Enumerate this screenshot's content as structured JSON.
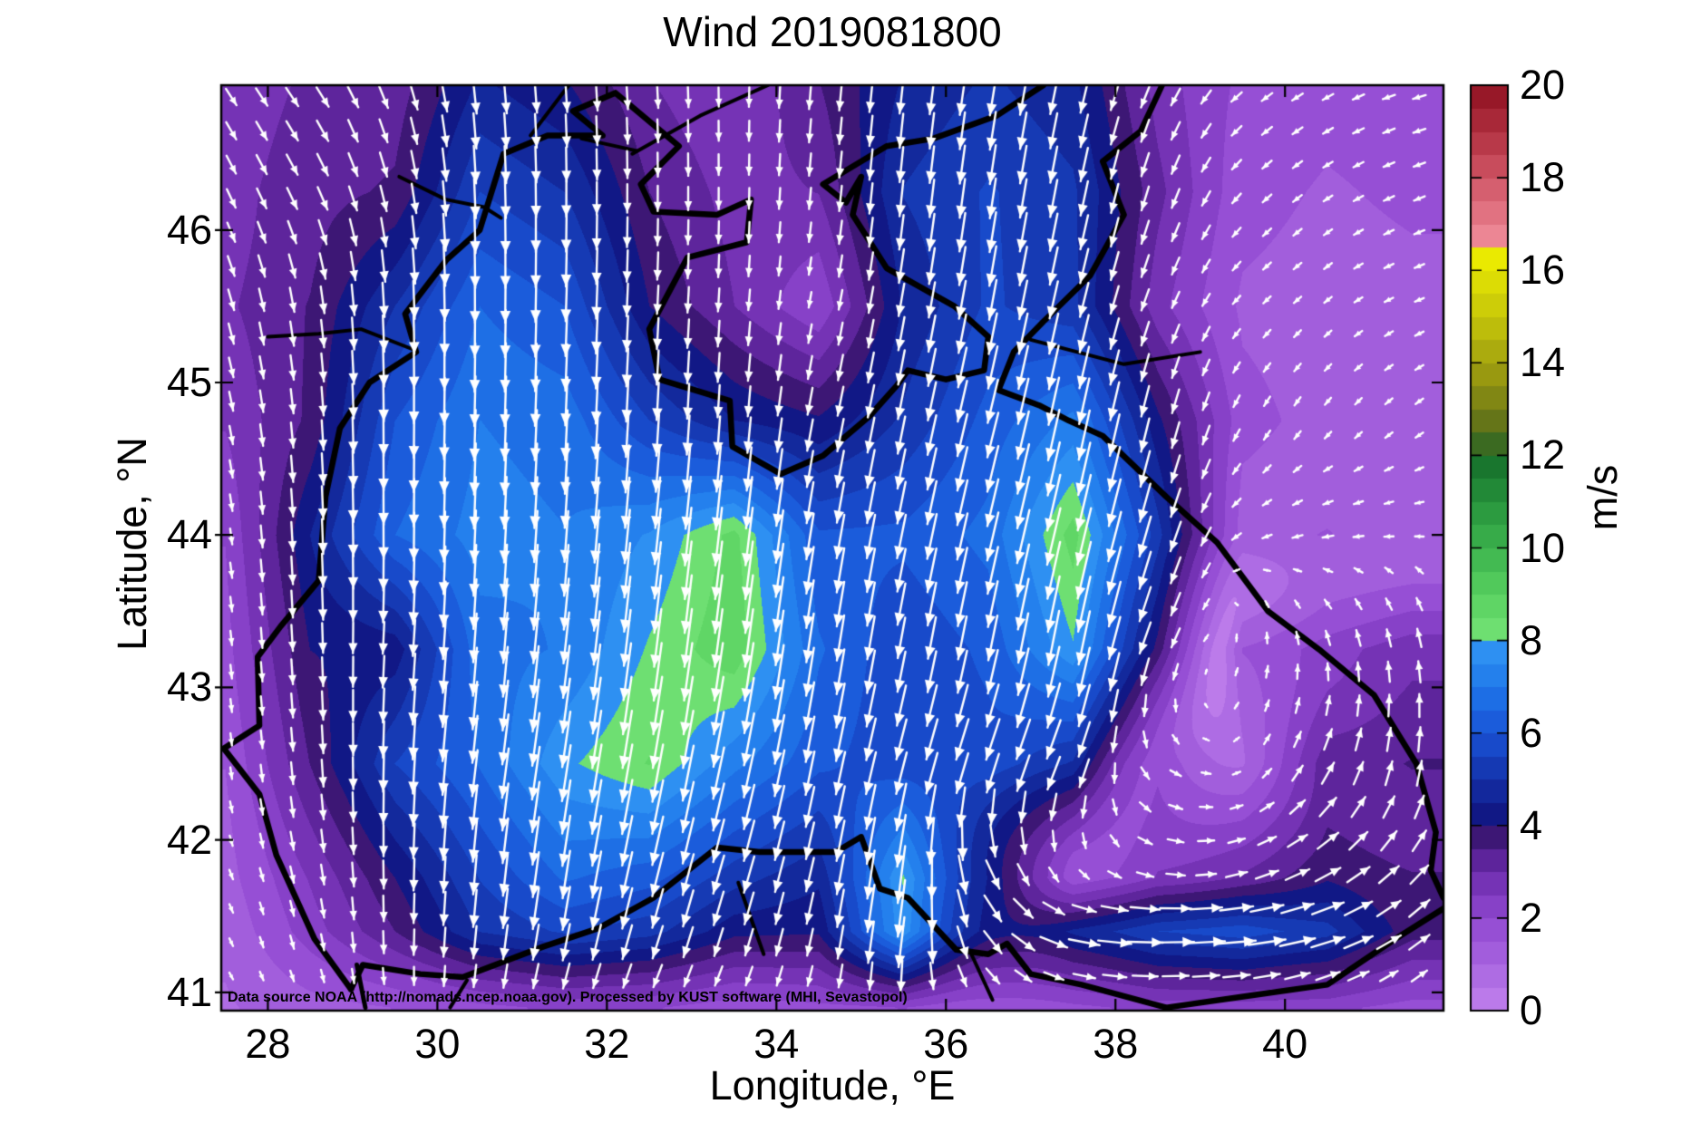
{
  "title": "Wind 2019081800",
  "footer": "Data source NOAA (http://nomads.ncep.noaa.gov). Processed by KUST software (MHI, Sevastopol)",
  "axes": {
    "xlabel": "Longitude, °E",
    "ylabel": "Latitude, °N",
    "x_ticks": [
      28,
      30,
      32,
      34,
      36,
      38,
      40
    ],
    "y_ticks": [
      41,
      42,
      43,
      44,
      45,
      46
    ],
    "lon_range": [
      27.45,
      41.87
    ],
    "lat_range": [
      40.88,
      46.95
    ]
  },
  "colorbar": {
    "label": "m/s",
    "ticks": [
      0,
      2,
      4,
      6,
      8,
      10,
      12,
      14,
      16,
      18,
      20
    ],
    "min": 0,
    "max": 20,
    "stops": [
      [
        0,
        "#c282ee"
      ],
      [
        1,
        "#a865e0"
      ],
      [
        2,
        "#9048d1"
      ],
      [
        3,
        "#6c2cac"
      ],
      [
        3.6,
        "#4a1b85"
      ],
      [
        3.95,
        "#2c1260"
      ],
      [
        4,
        "#10107a"
      ],
      [
        5,
        "#1431a8"
      ],
      [
        6,
        "#1a53d6"
      ],
      [
        7,
        "#1f78ea"
      ],
      [
        7.75,
        "#2e90f2"
      ],
      [
        7.8,
        "#7ce87c"
      ],
      [
        9,
        "#58d160"
      ],
      [
        10,
        "#3db34e"
      ],
      [
        11,
        "#27933c"
      ],
      [
        12,
        "#156d2a"
      ],
      [
        12.4,
        "#52691c"
      ],
      [
        13.5,
        "#909012"
      ],
      [
        15,
        "#c6c60a"
      ],
      [
        16.5,
        "#f2f200"
      ],
      [
        16.7,
        "#ee8896"
      ],
      [
        18,
        "#d05666"
      ],
      [
        19,
        "#b13040"
      ],
      [
        20,
        "#8f1020"
      ]
    ]
  },
  "chart_data": {
    "type": "heatmap",
    "subtype": "wind_vector_field_with_quiver",
    "title": "Wind 2019081800",
    "units": "m/s",
    "xlabel": "Longitude, °E",
    "ylabel": "Latitude, °N",
    "speed_range_shown": [
      0,
      20
    ],
    "lon": [
      27.5,
      28.5,
      29.5,
      30.5,
      31.5,
      32.5,
      33.5,
      34.5,
      35.5,
      36.5,
      37.5,
      38.5,
      39.5,
      40.5,
      41.5
    ],
    "lat": [
      47.0,
      46.25,
      45.5,
      44.75,
      44.0,
      43.25,
      42.5,
      41.75,
      41.4,
      40.9
    ],
    "u": [
      [
        1.5,
        1.8,
        1.2,
        0.5,
        0.3,
        0.2,
        0.0,
        -0.3,
        -0.5,
        -0.8,
        -1.0,
        -1.2,
        -1.5,
        -1.5,
        -1.8
      ],
      [
        1.2,
        1.5,
        0.8,
        0.2,
        0.0,
        0.0,
        0.0,
        -0.3,
        -0.5,
        -0.8,
        -1.0,
        -1.0,
        -1.2,
        -1.2,
        -1.5
      ],
      [
        0.8,
        0.5,
        0.2,
        0.0,
        -0.2,
        -0.2,
        -0.2,
        -0.4,
        -0.8,
        -1.0,
        -1.2,
        -1.0,
        -1.0,
        -1.0,
        -1.2
      ],
      [
        0.5,
        0.3,
        0.0,
        -0.2,
        -0.3,
        -0.3,
        -0.3,
        -0.8,
        -1.0,
        -1.5,
        -1.5,
        -1.0,
        -0.8,
        -0.8,
        -1.0
      ],
      [
        0.3,
        0.2,
        0.0,
        -0.3,
        -0.5,
        -0.8,
        -1.0,
        -1.0,
        -1.2,
        -1.5,
        -2.0,
        -1.5,
        -1.2,
        -1.5,
        -1.2
      ],
      [
        0.2,
        0.2,
        -0.3,
        -0.5,
        -0.8,
        -1.0,
        -1.2,
        -1.0,
        -1.0,
        -1.2,
        -1.5,
        -1.5,
        0.3,
        -0.5,
        -0.5
      ],
      [
        0.2,
        0.3,
        -0.2,
        -0.8,
        -1.2,
        -1.5,
        -1.5,
        -1.2,
        -1.5,
        -2.0,
        -2.0,
        1.5,
        0.8,
        1.5,
        0.5
      ],
      [
        0.5,
        0.5,
        0.0,
        -0.5,
        -1.0,
        -1.5,
        -1.5,
        -1.0,
        -1.0,
        2.0,
        1.2,
        2.5,
        3.0,
        3.5,
        2.5
      ],
      [
        0.5,
        0.5,
        0.0,
        -0.5,
        -1.0,
        -1.5,
        -1.2,
        -0.8,
        -1.0,
        2.5,
        4.5,
        5.5,
        5.8,
        5.0,
        3.0
      ],
      [
        0.5,
        0.5,
        0.2,
        -0.3,
        -0.8,
        -1.0,
        -0.8,
        -0.5,
        0.3,
        1.2,
        1.8,
        2.2,
        2.2,
        2.0,
        1.5
      ]
    ],
    "v": [
      [
        -2.2,
        -2.5,
        -3.0,
        -4.5,
        -4.0,
        -3.0,
        -2.5,
        -3.5,
        -4.5,
        -5.0,
        -4.5,
        -2.5,
        -1.2,
        -0.8,
        -0.5
      ],
      [
        -2.5,
        -3.0,
        -3.5,
        -5.5,
        -5.0,
        -3.5,
        -2.8,
        -3.0,
        -5.0,
        -5.5,
        -5.0,
        -3.0,
        -1.2,
        -0.8,
        -0.6
      ],
      [
        -2.8,
        -3.5,
        -5.0,
        -6.5,
        -6.0,
        -4.0,
        -3.0,
        -2.0,
        -4.5,
        -5.5,
        -5.0,
        -2.5,
        -1.0,
        -0.8,
        -0.5
      ],
      [
        -2.5,
        -3.6,
        -6.0,
        -7.0,
        -6.8,
        -5.5,
        -4.5,
        -4.0,
        -5.0,
        -6.0,
        -7.0,
        -4.0,
        -1.5,
        -1.0,
        -0.8
      ],
      [
        -2.0,
        -4.5,
        -6.5,
        -7.2,
        -7.0,
        -7.5,
        -8.6,
        -6.0,
        -6.0,
        -6.5,
        -8.5,
        -5.0,
        -0.6,
        -0.3,
        0.0
      ],
      [
        -1.8,
        -4.0,
        -4.2,
        -6.8,
        -7.0,
        -8.0,
        -8.8,
        -6.5,
        -5.5,
        -6.0,
        -7.8,
        -3.5,
        1.5,
        2.2,
        2.8
      ],
      [
        -1.5,
        -3.5,
        -5.5,
        -6.5,
        -7.8,
        -8.4,
        -7.0,
        -6.0,
        -5.5,
        -5.5,
        -4.5,
        -1.2,
        0.5,
        3.0,
        3.5
      ],
      [
        -1.2,
        -2.5,
        -4.0,
        -5.5,
        -6.5,
        -6.0,
        -5.0,
        -4.5,
        -8.0,
        -4.0,
        -1.2,
        -0.5,
        0.8,
        1.8,
        2.5
      ],
      [
        -1.0,
        -2.2,
        -3.5,
        -5.0,
        -5.5,
        -5.0,
        -4.0,
        -4.0,
        -7.8,
        -3.5,
        -1.0,
        0.0,
        0.5,
        1.5,
        2.2
      ],
      [
        -0.8,
        -1.2,
        -1.5,
        -1.8,
        -2.0,
        -1.8,
        -1.5,
        -1.8,
        -2.0,
        -1.2,
        -0.5,
        0.0,
        0.3,
        0.8,
        1.0
      ]
    ],
    "coastlines": [
      {
        "name": "west-north-crimea-azov-coast",
        "w": 6.5,
        "pts": [
          [
            28.98,
            41.02
          ],
          [
            28.55,
            41.35
          ],
          [
            28.1,
            41.9
          ],
          [
            27.9,
            42.3
          ],
          [
            27.48,
            42.6
          ],
          [
            27.9,
            42.75
          ],
          [
            27.88,
            43.2
          ],
          [
            28.15,
            43.4
          ],
          [
            28.6,
            43.7
          ],
          [
            28.68,
            44.25
          ],
          [
            28.85,
            44.7
          ],
          [
            29.2,
            45.0
          ],
          [
            29.75,
            45.2
          ],
          [
            29.62,
            45.45
          ],
          [
            30.1,
            45.8
          ],
          [
            30.5,
            46.0
          ],
          [
            30.78,
            46.5
          ],
          [
            31.3,
            46.62
          ],
          [
            31.95,
            46.62
          ],
          [
            31.6,
            46.78
          ],
          [
            32.1,
            46.9
          ],
          [
            32.85,
            46.55
          ],
          [
            32.4,
            46.3
          ],
          [
            32.55,
            46.12
          ],
          [
            33.3,
            46.1
          ],
          [
            33.7,
            46.2
          ],
          [
            33.65,
            45.92
          ],
          [
            32.95,
            45.82
          ],
          [
            32.5,
            45.35
          ],
          [
            32.62,
            45.02
          ],
          [
            33.45,
            44.88
          ],
          [
            33.48,
            44.58
          ],
          [
            34.05,
            44.4
          ],
          [
            34.55,
            44.52
          ],
          [
            35.1,
            44.78
          ],
          [
            35.42,
            44.98
          ],
          [
            35.55,
            45.08
          ],
          [
            36.0,
            45.02
          ],
          [
            36.45,
            45.08
          ],
          [
            36.5,
            45.3
          ],
          [
            36.1,
            45.5
          ],
          [
            35.3,
            45.75
          ],
          [
            34.9,
            46.1
          ],
          [
            35.0,
            46.35
          ],
          [
            34.82,
            46.18
          ],
          [
            34.55,
            46.3
          ],
          [
            35.3,
            46.55
          ],
          [
            35.85,
            46.6
          ],
          [
            36.6,
            46.75
          ],
          [
            37.15,
            46.95
          ]
        ]
      },
      {
        "name": "azov-east-caucasus-coast",
        "w": 6.5,
        "pts": [
          [
            38.55,
            46.95
          ],
          [
            38.3,
            46.65
          ],
          [
            37.85,
            46.45
          ],
          [
            38.1,
            46.1
          ],
          [
            37.7,
            45.7
          ],
          [
            37.15,
            45.4
          ],
          [
            36.8,
            45.2
          ],
          [
            36.62,
            44.95
          ],
          [
            37.1,
            44.85
          ],
          [
            37.45,
            44.75
          ],
          [
            37.85,
            44.65
          ],
          [
            38.6,
            44.25
          ],
          [
            39.2,
            43.95
          ],
          [
            39.8,
            43.5
          ],
          [
            40.4,
            43.25
          ],
          [
            41.05,
            42.95
          ],
          [
            41.55,
            42.5
          ],
          [
            41.78,
            42.05
          ],
          [
            41.72,
            41.8
          ],
          [
            41.87,
            41.62
          ]
        ]
      },
      {
        "name": "turkey-south-coast",
        "w": 6.5,
        "pts": [
          [
            41.87,
            41.55
          ],
          [
            41.3,
            41.35
          ],
          [
            40.5,
            41.05
          ],
          [
            39.6,
            40.98
          ],
          [
            38.6,
            40.9
          ],
          [
            37.6,
            41.05
          ],
          [
            37.0,
            41.12
          ],
          [
            36.72,
            41.32
          ],
          [
            36.5,
            41.25
          ],
          [
            36.12,
            41.28
          ],
          [
            35.55,
            41.62
          ],
          [
            35.22,
            41.68
          ],
          [
            35.0,
            42.02
          ],
          [
            34.7,
            41.92
          ],
          [
            33.8,
            41.92
          ],
          [
            33.3,
            41.95
          ],
          [
            32.55,
            41.62
          ],
          [
            31.9,
            41.42
          ],
          [
            31.25,
            41.3
          ],
          [
            30.3,
            41.1
          ],
          [
            29.8,
            41.12
          ],
          [
            29.12,
            41.18
          ],
          [
            28.98,
            41.02
          ]
        ]
      },
      {
        "name": "danube-river",
        "w": 4,
        "pts": [
          [
            28.0,
            45.3
          ],
          [
            28.6,
            45.32
          ],
          [
            29.1,
            45.35
          ],
          [
            29.7,
            45.22
          ]
        ]
      },
      {
        "name": "dniester-estuary",
        "w": 4,
        "pts": [
          [
            29.55,
            46.35
          ],
          [
            30.1,
            46.2
          ],
          [
            30.55,
            46.15
          ],
          [
            30.75,
            46.08
          ]
        ]
      },
      {
        "name": "dnieper-river",
        "w": 4,
        "pts": [
          [
            32.3,
            46.5
          ],
          [
            33.1,
            46.75
          ],
          [
            33.9,
            46.95
          ]
        ]
      },
      {
        "name": "dnieper-estuary",
        "w": 4,
        "pts": [
          [
            31.7,
            46.6
          ],
          [
            32.35,
            46.52
          ]
        ]
      },
      {
        "name": "bug-river",
        "w": 4,
        "pts": [
          [
            31.1,
            46.62
          ],
          [
            31.55,
            46.95
          ]
        ]
      },
      {
        "name": "bosphorus",
        "w": 5,
        "pts": [
          [
            29.05,
            41.18
          ],
          [
            29.15,
            40.9
          ]
        ]
      },
      {
        "name": "sakarya-river",
        "w": 4,
        "pts": [
          [
            30.35,
            41.08
          ],
          [
            30.15,
            40.9
          ]
        ]
      },
      {
        "name": "kizilirmak-river",
        "w": 4,
        "pts": [
          [
            33.55,
            41.72
          ],
          [
            33.85,
            41.25
          ]
        ]
      },
      {
        "name": "yesilirmak-river",
        "w": 4,
        "pts": [
          [
            36.3,
            41.25
          ],
          [
            36.55,
            40.95
          ]
        ]
      },
      {
        "name": "kuban-river",
        "w": 4,
        "pts": [
          [
            37.0,
            45.28
          ],
          [
            38.1,
            45.12
          ],
          [
            39.0,
            45.2
          ]
        ]
      }
    ]
  }
}
